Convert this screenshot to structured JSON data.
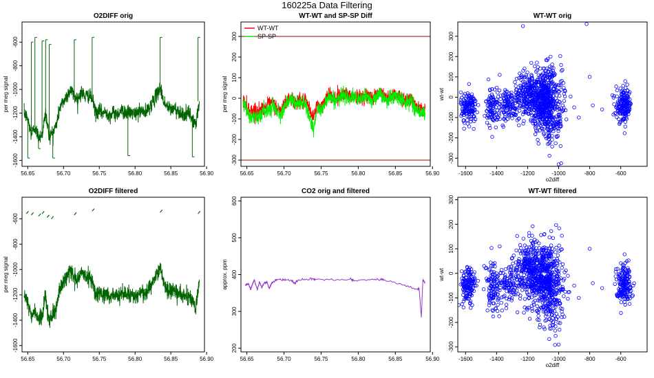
{
  "figure": {
    "title": "160225a   Data Filtering"
  },
  "chart_data": [
    {
      "type": "line",
      "title": "O2DIFF orig",
      "xlabel": "",
      "ylabel": "per meg signal",
      "xlim": [
        56.642,
        56.897
      ],
      "ylim": [
        -1650,
        -430
      ],
      "xticks": [
        56.65,
        56.7,
        56.75,
        56.8,
        56.85,
        56.9
      ],
      "xticklabels": [
        "56.65",
        "56.70",
        "56.75",
        "56.80",
        "56.85",
        "56.90"
      ],
      "yticks": [
        -1600,
        -1400,
        -1200,
        -1000,
        -800,
        -600
      ],
      "yticklabels": [
        "-1600",
        "-1400",
        "-1200",
        "-1000",
        "-800",
        "-600"
      ],
      "color": "#006400",
      "series": [
        {
          "name": "O2DIFF",
          "x": [
            56.645,
            56.65,
            56.655,
            56.66,
            56.665,
            56.67,
            56.675,
            56.68,
            56.685,
            56.69,
            56.695,
            56.7,
            56.705,
            56.71,
            56.715,
            56.72,
            56.725,
            56.73,
            56.735,
            56.74,
            56.745,
            56.75,
            56.755,
            56.76,
            56.765,
            56.77,
            56.775,
            56.78,
            56.785,
            56.79,
            56.795,
            56.8,
            56.805,
            56.81,
            56.815,
            56.82,
            56.825,
            56.83,
            56.835,
            56.84,
            56.845,
            56.85,
            56.855,
            56.86,
            56.865,
            56.87,
            56.875,
            56.88,
            56.885,
            56.89
          ],
          "y": [
            -1200,
            -1250,
            -1380,
            -1320,
            -1400,
            -1380,
            -1200,
            -1400,
            -1360,
            -1300,
            -1150,
            -1100,
            -1050,
            -1000,
            -1060,
            -1080,
            -1020,
            -1060,
            -1050,
            -1080,
            -1200,
            -1180,
            -1200,
            -1190,
            -1220,
            -1200,
            -1210,
            -1180,
            -1190,
            -1200,
            -1195,
            -1210,
            -1190,
            -1180,
            -1200,
            -1150,
            -1100,
            -1050,
            -980,
            -1100,
            -1150,
            -1170,
            -1160,
            -1180,
            -1200,
            -1220,
            -1200,
            -1250,
            -1300,
            -1100
          ]
        },
        {
          "name": "spikes",
          "x": [
            56.65,
            56.655,
            56.66,
            56.665,
            56.67,
            56.675,
            56.68,
            56.685,
            56.715,
            56.74,
            56.79,
            56.835,
            56.88,
            56.888
          ],
          "y": [
            -1580,
            -600,
            -560,
            -1500,
            -590,
            -580,
            -620,
            -1580,
            -580,
            -560,
            -1560,
            -560,
            -1570,
            -560
          ]
        }
      ]
    },
    {
      "type": "line",
      "title": "WT-WT and SP-SP Diff",
      "xlabel": "",
      "ylabel": "per meg signal",
      "xlim": [
        56.642,
        56.897
      ],
      "ylim": [
        -330,
        370
      ],
      "xticks": [
        56.65,
        56.7,
        56.75,
        56.8,
        56.85,
        56.9
      ],
      "xticklabels": [
        "56.65",
        "56.70",
        "56.75",
        "56.80",
        "56.85",
        "56.90"
      ],
      "yticks": [
        -300,
        -200,
        -100,
        0,
        100,
        200,
        300
      ],
      "yticklabels": [
        "-300",
        "-200",
        "-100",
        "0",
        "100",
        "200",
        "300"
      ],
      "hlines": [
        300,
        -300
      ],
      "legend": {
        "position": "top-left"
      },
      "series": [
        {
          "name": "WT-WT",
          "color": "#ff0000",
          "x": [
            56.645,
            56.65,
            56.655,
            56.66,
            56.665,
            56.67,
            56.675,
            56.68,
            56.685,
            56.69,
            56.695,
            56.7,
            56.705,
            56.71,
            56.715,
            56.72,
            56.725,
            56.73,
            56.735,
            56.74,
            56.745,
            56.75,
            56.755,
            56.76,
            56.765,
            56.77,
            56.775,
            56.78,
            56.785,
            56.79,
            56.795,
            56.8,
            56.805,
            56.81,
            56.815,
            56.82,
            56.825,
            56.83,
            56.835,
            56.84,
            56.845,
            56.85,
            56.855,
            56.86,
            56.865,
            56.87,
            56.875,
            56.88,
            56.885,
            56.89
          ],
          "y": [
            -10,
            -40,
            -60,
            -55,
            -70,
            -50,
            -40,
            -30,
            -20,
            -45,
            -60,
            -30,
            -10,
            0,
            -20,
            -10,
            -15,
            -20,
            -60,
            -90,
            -30,
            -40,
            -10,
            20,
            10,
            0,
            10,
            30,
            20,
            10,
            15,
            0,
            10,
            20,
            10,
            5,
            20,
            30,
            10,
            0,
            15,
            20,
            10,
            0,
            -10,
            0,
            -20,
            -40,
            -50,
            -50
          ]
        },
        {
          "name": "SP-SP",
          "color": "#00ee00",
          "x": [
            56.645,
            56.65,
            56.655,
            56.66,
            56.665,
            56.67,
            56.675,
            56.68,
            56.685,
            56.69,
            56.695,
            56.7,
            56.705,
            56.71,
            56.715,
            56.72,
            56.725,
            56.73,
            56.735,
            56.74,
            56.745,
            56.75,
            56.755,
            56.76,
            56.765,
            56.77,
            56.775,
            56.78,
            56.785,
            56.79,
            56.795,
            56.8,
            56.805,
            56.81,
            56.815,
            56.82,
            56.825,
            56.83,
            56.835,
            56.84,
            56.845,
            56.85,
            56.855,
            56.86,
            56.865,
            56.87,
            56.875,
            56.88,
            56.885,
            56.89
          ],
          "y": [
            -20,
            -60,
            -90,
            -80,
            -100,
            -70,
            -60,
            -50,
            -30,
            -60,
            -80,
            -40,
            -20,
            -10,
            -30,
            -20,
            -25,
            -40,
            -100,
            -150,
            -50,
            -60,
            -20,
            10,
            0,
            -10,
            0,
            20,
            10,
            0,
            5,
            -10,
            0,
            10,
            0,
            -5,
            10,
            20,
            0,
            -10,
            5,
            10,
            0,
            -10,
            -20,
            -10,
            -40,
            -60,
            -70,
            -70
          ]
        }
      ]
    },
    {
      "type": "scatter",
      "title": "WT-WT orig",
      "xlabel": "o2diff",
      "ylabel": "wt-wt",
      "xlim": [
        -1650,
        -430
      ],
      "ylim": [
        -340,
        370
      ],
      "xticks": [
        -1600,
        -1400,
        -1200,
        -1000,
        -800,
        -600
      ],
      "xticklabels": [
        "-1600",
        "-1400",
        "-1200",
        "-1000",
        "-800",
        "-600"
      ],
      "yticks": [
        -300,
        -200,
        -100,
        0,
        100,
        200,
        300
      ],
      "yticklabels": [
        "-300",
        "-200",
        "-100",
        "0",
        "100",
        "200",
        "300"
      ],
      "color": "#0000ff",
      "clusters": [
        {
          "cx": -1580,
          "cy": -50,
          "sx": 25,
          "sy": 40,
          "n": 140
        },
        {
          "cx": -1430,
          "cy": -50,
          "sx": 20,
          "sy": 50,
          "n": 90
        },
        {
          "cx": -1330,
          "cy": -40,
          "sx": 40,
          "sy": 40,
          "n": 110
        },
        {
          "cx": -1200,
          "cy": 10,
          "sx": 45,
          "sy": 55,
          "n": 230
        },
        {
          "cx": -1090,
          "cy": -10,
          "sx": 55,
          "sy": 75,
          "n": 520
        },
        {
          "cx": -1050,
          "cy": -120,
          "sx": 40,
          "sy": 60,
          "n": 120
        },
        {
          "cx": -580,
          "cy": -40,
          "sx": 25,
          "sy": 40,
          "n": 170
        }
      ],
      "points": [
        {
          "x": -1230,
          "y": 350
        },
        {
          "x": -820,
          "y": 360
        },
        {
          "x": -900,
          "y": -50
        },
        {
          "x": -870,
          "y": -100
        },
        {
          "x": -780,
          "y": -40
        },
        {
          "x": -720,
          "y": -60
        },
        {
          "x": -800,
          "y": 100
        },
        {
          "x": -1380,
          "y": 110
        },
        {
          "x": -1000,
          "y": -330
        }
      ]
    },
    {
      "type": "line",
      "title": "O2DIFF filtered",
      "xlabel": "",
      "ylabel": "per meg signal",
      "xlim": [
        56.642,
        56.897
      ],
      "ylim": [
        -1650,
        -430
      ],
      "xticks": [
        56.65,
        56.7,
        56.75,
        56.8,
        56.85,
        56.9
      ],
      "xticklabels": [
        "56.65",
        "56.70",
        "56.75",
        "56.80",
        "56.85",
        "56.90"
      ],
      "yticks": [
        -1600,
        -1400,
        -1200,
        -1000,
        -800,
        -600
      ],
      "yticklabels": [
        "-1600",
        "-1400",
        "-1200",
        "-1000",
        "-800",
        "-600"
      ],
      "color": "#006400",
      "series": [
        {
          "name": "O2DIFF",
          "x": [
            56.645,
            56.65,
            56.655,
            56.66,
            56.665,
            56.67,
            56.675,
            56.68,
            56.685,
            56.69,
            56.695,
            56.7,
            56.705,
            56.71,
            56.715,
            56.72,
            56.725,
            56.73,
            56.735,
            56.74,
            56.745,
            56.75,
            56.755,
            56.76,
            56.765,
            56.77,
            56.775,
            56.78,
            56.785,
            56.79,
            56.795,
            56.8,
            56.805,
            56.81,
            56.815,
            56.82,
            56.825,
            56.83,
            56.835,
            56.84,
            56.845,
            56.85,
            56.855,
            56.86,
            56.865,
            56.87,
            56.875,
            56.88,
            56.885,
            56.89
          ],
          "y": [
            -1200,
            -1250,
            -1380,
            -1320,
            -1400,
            -1380,
            -1200,
            -1400,
            -1360,
            -1300,
            -1150,
            -1100,
            -1050,
            -1000,
            -1060,
            -1080,
            -1020,
            -1060,
            -1050,
            -1080,
            -1200,
            -1180,
            -1200,
            -1190,
            -1220,
            -1200,
            -1210,
            -1180,
            -1190,
            -1200,
            -1195,
            -1210,
            -1190,
            -1180,
            -1200,
            -1150,
            -1100,
            -1050,
            -980,
            -1100,
            -1150,
            -1170,
            -1160,
            -1180,
            -1200,
            -1220,
            -1200,
            -1250,
            -1300,
            -1100
          ]
        },
        {
          "name": "segments-high",
          "x": [
            56.648,
            56.655,
            56.665,
            56.67,
            56.677,
            56.683,
            56.715,
            56.74,
            56.835,
            56.888
          ],
          "y": [
            -560,
            -570,
            -580,
            -560,
            -590,
            -600,
            -570,
            -540,
            -550,
            -560
          ]
        }
      ]
    },
    {
      "type": "line",
      "title": "CO2 orig and filtered",
      "xlabel": "",
      "ylabel": "approx. ppm",
      "xlim": [
        56.642,
        56.897
      ],
      "ylim": [
        190,
        610
      ],
      "xticks": [
        56.65,
        56.7,
        56.75,
        56.8,
        56.85,
        56.9
      ],
      "xticklabels": [
        "56.65",
        "56.70",
        "56.75",
        "56.80",
        "56.85",
        "56.90"
      ],
      "yticks": [
        200,
        300,
        400,
        500,
        600
      ],
      "yticklabels": [
        "200",
        "300",
        "400",
        "500",
        "600"
      ],
      "series": [
        {
          "name": "CO2",
          "color": "#9933cc",
          "x": [
            56.648,
            56.652,
            56.655,
            56.658,
            56.66,
            56.664,
            56.667,
            56.67,
            56.674,
            56.677,
            56.68,
            56.684,
            56.69,
            56.71,
            56.715,
            56.717,
            56.74,
            56.742,
            56.79,
            56.794,
            56.83,
            56.834,
            56.88,
            56.882,
            56.885,
            56.887,
            56.89
          ],
          "y": [
            372,
            375,
            360,
            376,
            385,
            360,
            380,
            365,
            378,
            380,
            362,
            378,
            386,
            384,
            375,
            384,
            388,
            385,
            386,
            384,
            388,
            386,
            360,
            362,
            283,
            385,
            378
          ]
        }
      ]
    },
    {
      "type": "scatter",
      "title": "WT-WT filtered",
      "xlabel": "o2diff",
      "ylabel": "wt-wt",
      "xlim": [
        -1650,
        -430
      ],
      "ylim": [
        -320,
        310
      ],
      "xticks": [
        -1600,
        -1400,
        -1200,
        -1000,
        -800,
        -600
      ],
      "xticklabels": [
        "-1600",
        "-1400",
        "-1200",
        "-1000",
        "-800",
        "-600"
      ],
      "yticks": [
        -300,
        -200,
        -100,
        0,
        100,
        200,
        300
      ],
      "yticklabels": [
        "-300",
        "-200",
        "-100",
        "0",
        "100",
        "200",
        "300"
      ],
      "color": "#0000ff",
      "clusters": [
        {
          "cx": -1580,
          "cy": -50,
          "sx": 25,
          "sy": 40,
          "n": 140
        },
        {
          "cx": -1430,
          "cy": -50,
          "sx": 20,
          "sy": 50,
          "n": 90
        },
        {
          "cx": -1330,
          "cy": -40,
          "sx": 40,
          "sy": 40,
          "n": 110
        },
        {
          "cx": -1200,
          "cy": 10,
          "sx": 45,
          "sy": 55,
          "n": 230
        },
        {
          "cx": -1090,
          "cy": -10,
          "sx": 55,
          "sy": 75,
          "n": 520
        },
        {
          "cx": -1050,
          "cy": -120,
          "sx": 40,
          "sy": 60,
          "n": 120
        },
        {
          "cx": -580,
          "cy": -40,
          "sx": 25,
          "sy": 40,
          "n": 170
        }
      ],
      "points": [
        {
          "x": -900,
          "y": -50
        },
        {
          "x": -870,
          "y": -100
        },
        {
          "x": -780,
          "y": -40
        },
        {
          "x": -720,
          "y": -60
        },
        {
          "x": -800,
          "y": 100
        },
        {
          "x": -1380,
          "y": 110
        },
        {
          "x": -1000,
          "y": -290
        }
      ]
    }
  ]
}
